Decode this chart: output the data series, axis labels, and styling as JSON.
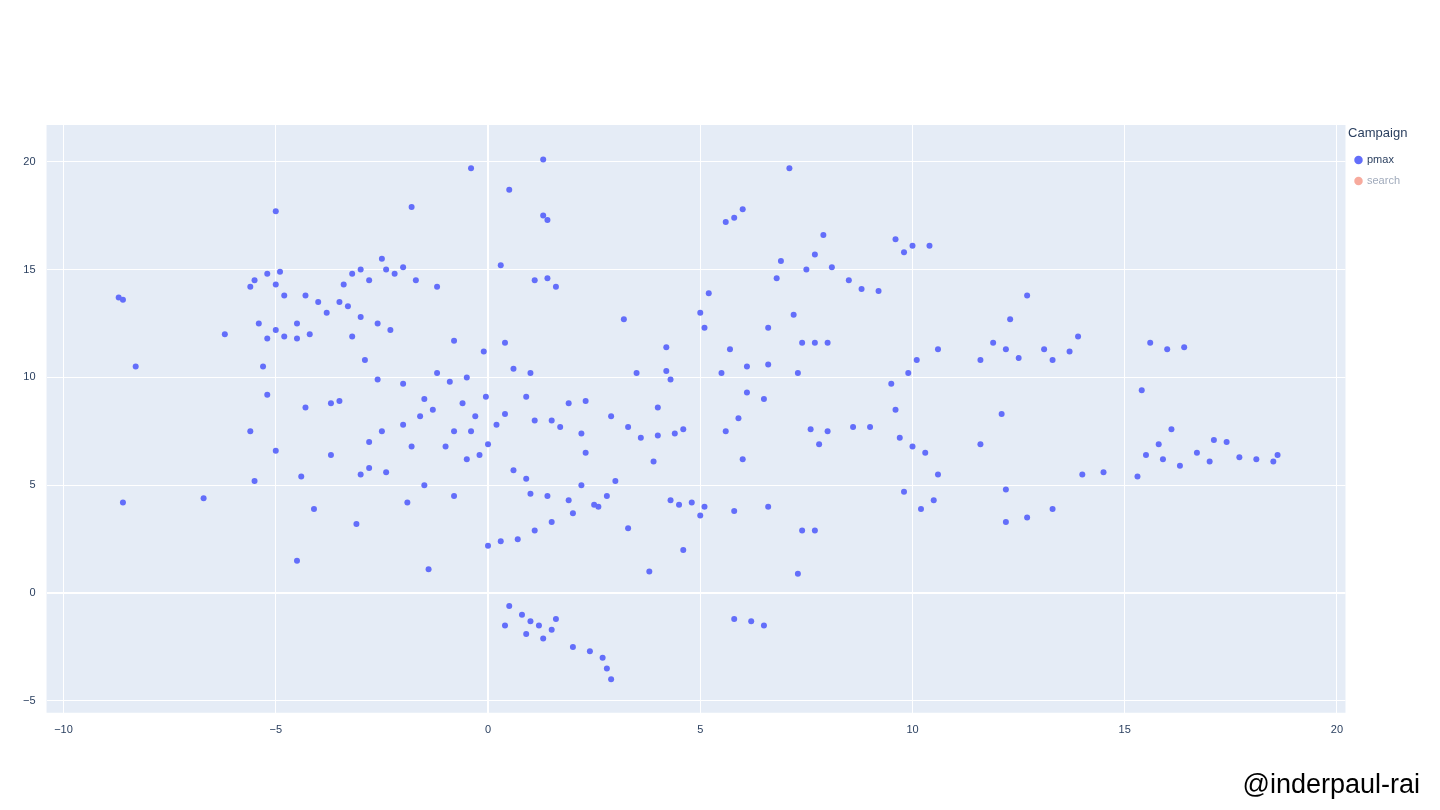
{
  "chart_data": {
    "type": "scatter",
    "legend_title": "Campaign",
    "legend": "top right",
    "grid": true,
    "marker": "circle",
    "xlim": [
      -10.4,
      20.2
    ],
    "ylim": [
      -5.55,
      21.7
    ],
    "xticks": [
      -10,
      -5,
      0,
      5,
      10,
      15,
      20
    ],
    "yticks": [
      -5,
      0,
      5,
      10,
      15,
      20
    ],
    "annotations": [
      "@inderpaul-rai"
    ],
    "series": [
      {
        "name": "pmax",
        "color": "#636efa",
        "x": [
          -8.7,
          -8.6,
          -8.3,
          -8.6,
          -6.7,
          -5.5,
          -5.2,
          -4.9,
          -5.6,
          -5.0,
          -4.8,
          -5.0,
          -6.2,
          -5.4,
          -5.0,
          -4.5,
          -4.2,
          -3.8,
          -3.5,
          -4.0,
          -4.5,
          -4.8,
          -5.2,
          -3.3,
          -4.3,
          -3.2,
          -2.8,
          -2.4,
          -2.2,
          -2.5,
          -3.0,
          -2.0,
          -3.4,
          -1.8,
          -1.7,
          -1.2,
          -3.0,
          -2.6,
          -2.3,
          -3.2,
          -2.9,
          -2.6,
          -5.3,
          -5.2,
          -5.6,
          -5.5,
          -5.0,
          -4.4,
          -4.5,
          -4.3,
          -4.1,
          -3.7,
          -3.5,
          -3.7,
          -3.0,
          -2.8,
          -2.4,
          -2.8,
          -2.5,
          -2.0,
          -1.6,
          -1.5,
          -1.3,
          -1.8,
          -2.0,
          -1.2,
          -0.9,
          -0.6,
          -0.3,
          -0.8,
          -0.4,
          0.2,
          0.4,
          0.0,
          -0.2,
          -0.5,
          -1.0,
          -0.8,
          -0.5,
          -0.05,
          -0.1,
          -0.4,
          -0.8,
          -1.5,
          -1.9,
          -3.1,
          -1.4,
          0.3,
          0.5,
          1.3,
          1.3,
          1.4,
          1.1,
          1.4,
          1.6,
          0.4,
          0.6,
          1.0,
          0.9,
          1.1,
          0.6,
          0.9,
          0.0,
          0.3,
          0.7,
          1.1,
          1.5,
          2.0,
          2.5,
          2.8,
          2.2,
          1.9,
          1.4,
          2.6,
          1.0,
          3.0,
          2.3,
          1.5,
          1.9,
          2.3,
          2.9,
          2.2,
          1.7,
          3.3,
          3.6,
          4.0,
          4.4,
          4.6,
          3.2,
          3.3,
          3.5,
          3.9,
          4.0,
          4.2,
          4.2,
          4.3,
          4.5,
          4.8,
          3.8,
          4.6,
          4.3,
          0.5,
          0.8,
          1.0,
          1.2,
          0.9,
          1.5,
          1.6,
          0.4,
          1.3,
          2.0,
          2.4,
          2.7,
          2.8,
          2.9,
          5.0,
          5.2,
          5.1,
          5.6,
          5.8,
          6.0,
          6.8,
          6.9,
          7.5,
          7.7,
          7.9,
          8.1,
          8.5,
          8.8,
          9.2,
          9.6,
          9.8,
          10.0,
          10.4,
          7.1,
          7.2,
          6.6,
          6.1,
          6.6,
          5.5,
          5.7,
          6.1,
          6.5,
          5.9,
          5.6,
          6.0,
          5.1,
          5.0,
          5.8,
          6.6,
          7.4,
          7.7,
          7.3,
          5.8,
          6.2,
          6.5,
          7.4,
          7.7,
          8.0,
          7.3,
          7.6,
          8.0,
          7.8,
          8.6,
          9.0,
          9.5,
          9.9,
          9.6,
          9.7,
          10.1,
          10.0,
          10.3,
          9.8,
          10.2,
          10.5,
          10.6,
          10.6,
          11.6,
          11.9,
          12.2,
          12.5,
          12.3,
          12.7,
          13.1,
          13.3,
          13.9,
          13.7,
          12.1,
          12.2,
          12.2,
          12.7,
          13.3,
          11.6,
          14.0,
          14.5,
          15.3,
          15.5,
          15.8,
          16.1,
          15.9,
          16.3,
          16.7,
          17.1,
          17.4,
          17.7,
          18.1,
          18.5,
          18.6,
          17.0,
          16.0,
          16.4,
          15.6,
          15.4
        ],
        "values": [
          13.7,
          13.6,
          10.5,
          4.2,
          4.4,
          14.5,
          14.8,
          14.9,
          14.2,
          14.3,
          13.8,
          17.7,
          12.0,
          12.5,
          12.2,
          12.5,
          12.0,
          13.0,
          13.5,
          13.5,
          11.8,
          11.9,
          11.8,
          13.3,
          13.8,
          14.8,
          14.5,
          15.0,
          14.8,
          15.5,
          15.0,
          15.1,
          14.3,
          17.9,
          14.5,
          14.2,
          12.8,
          12.5,
          12.2,
          11.9,
          10.8,
          9.9,
          10.5,
          9.2,
          7.5,
          5.2,
          6.6,
          5.4,
          1.5,
          8.6,
          3.9,
          8.8,
          8.9,
          6.4,
          5.5,
          5.8,
          5.6,
          7.0,
          7.5,
          7.8,
          8.2,
          9.0,
          8.5,
          6.8,
          9.7,
          10.2,
          9.8,
          8.8,
          8.2,
          7.5,
          7.5,
          7.8,
          8.3,
          6.9,
          6.4,
          6.2,
          6.8,
          11.7,
          10.0,
          9.1,
          11.2,
          19.7,
          4.5,
          5.0,
          4.2,
          3.2,
          1.1,
          15.2,
          18.7,
          20.1,
          17.5,
          17.3,
          14.5,
          14.6,
          14.2,
          11.6,
          10.4,
          10.2,
          9.1,
          8.0,
          5.7,
          5.3,
          2.2,
          2.4,
          2.5,
          2.9,
          3.3,
          3.7,
          4.1,
          4.5,
          5.0,
          4.3,
          4.5,
          4.0,
          4.6,
          5.2,
          6.5,
          8.0,
          8.8,
          8.9,
          8.2,
          7.4,
          7.7,
          7.7,
          7.2,
          7.3,
          7.4,
          7.6,
          12.7,
          3.0,
          10.2,
          6.1,
          8.6,
          10.3,
          11.4,
          4.3,
          4.1,
          4.2,
          1.0,
          2.0,
          9.9,
          -0.6,
          -1.0,
          -1.3,
          -1.5,
          -1.9,
          -1.7,
          -1.2,
          -1.5,
          -2.1,
          -2.5,
          -2.7,
          -3.0,
          -3.5,
          -4.0,
          13.0,
          13.9,
          12.3,
          17.2,
          17.4,
          17.8,
          14.6,
          15.4,
          15.0,
          15.7,
          16.6,
          15.1,
          14.5,
          14.1,
          14.0,
          16.4,
          15.8,
          16.1,
          16.1,
          19.7,
          12.9,
          12.3,
          10.5,
          10.6,
          10.2,
          11.3,
          9.3,
          9.0,
          8.1,
          7.5,
          6.2,
          4.0,
          3.6,
          3.8,
          4.0,
          2.9,
          2.9,
          0.9,
          -1.2,
          -1.3,
          -1.5,
          11.6,
          11.6,
          11.6,
          10.2,
          7.6,
          7.5,
          6.9,
          7.7,
          7.7,
          9.7,
          10.2,
          8.5,
          7.2,
          10.8,
          6.8,
          6.5,
          4.7,
          3.9,
          4.3,
          5.5,
          11.3,
          10.8,
          11.6,
          11.3,
          10.9,
          12.7,
          13.8,
          11.3,
          10.8,
          11.9,
          11.2,
          8.3,
          4.8,
          3.3,
          3.5,
          3.9,
          6.9,
          5.5,
          5.6,
          5.4,
          6.4,
          6.9,
          7.6,
          6.2,
          5.9,
          6.5,
          7.1,
          7.0,
          6.3,
          6.2,
          6.1,
          6.4,
          6.1,
          11.3,
          11.4,
          11.6,
          9.4
        ]
      },
      {
        "name": "search",
        "color": "#ef553b"
      }
    ]
  }
}
